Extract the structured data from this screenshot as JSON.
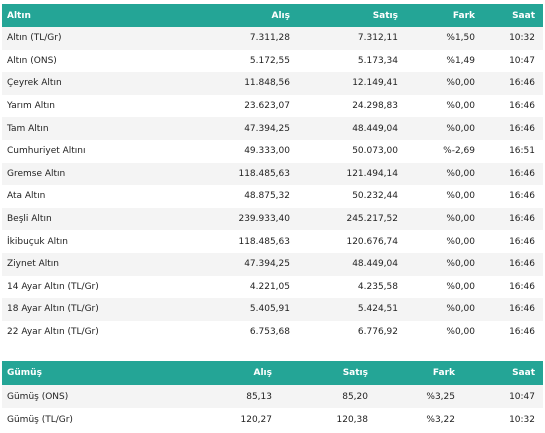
{
  "gold": {
    "headers": {
      "name": "Altın",
      "buy": "Alış",
      "sell": "Satış",
      "diff": "Fark",
      "time": "Saat"
    },
    "rows": [
      {
        "name": "Altın (TL/Gr)",
        "buy": "7.311,28",
        "sell": "7.312,11",
        "diff": "%1,50",
        "time": "10:32"
      },
      {
        "name": "Altın (ONS)",
        "buy": "5.172,55",
        "sell": "5.173,34",
        "diff": "%1,49",
        "time": "10:47"
      },
      {
        "name": "Çeyrek Altın",
        "buy": "11.848,56",
        "sell": "12.149,41",
        "diff": "%0,00",
        "time": "16:46"
      },
      {
        "name": "Yarım Altın",
        "buy": "23.623,07",
        "sell": "24.298,83",
        "diff": "%0,00",
        "time": "16:46"
      },
      {
        "name": "Tam Altın",
        "buy": "47.394,25",
        "sell": "48.449,04",
        "diff": "%0,00",
        "time": "16:46"
      },
      {
        "name": "Cumhuriyet Altını",
        "buy": "49.333,00",
        "sell": "50.073,00",
        "diff": "%-2,69",
        "time": "16:51"
      },
      {
        "name": "Gremse Altın",
        "buy": "118.485,63",
        "sell": "121.494,14",
        "diff": "%0,00",
        "time": "16:46"
      },
      {
        "name": "Ata Altın",
        "buy": "48.875,32",
        "sell": "50.232,44",
        "diff": "%0,00",
        "time": "16:46"
      },
      {
        "name": "Beşli Altın",
        "buy": "239.933,40",
        "sell": "245.217,52",
        "diff": "%0,00",
        "time": "16:46"
      },
      {
        "name": "İkibuçuk Altın",
        "buy": "118.485,63",
        "sell": "120.676,74",
        "diff": "%0,00",
        "time": "16:46"
      },
      {
        "name": "Ziynet Altın",
        "buy": "47.394,25",
        "sell": "48.449,04",
        "diff": "%0,00",
        "time": "16:46"
      },
      {
        "name": "14 Ayar Altın (TL/Gr)",
        "buy": "4.221,05",
        "sell": "4.235,58",
        "diff": "%0,00",
        "time": "16:46"
      },
      {
        "name": "18 Ayar Altın (TL/Gr)",
        "buy": "5.405,91",
        "sell": "5.424,51",
        "diff": "%0,00",
        "time": "16:46"
      },
      {
        "name": "22 Ayar Altın (TL/Gr)",
        "buy": "6.753,68",
        "sell": "6.776,92",
        "diff": "%0,00",
        "time": "16:46"
      }
    ]
  },
  "silver": {
    "headers": {
      "name": "Gümüş",
      "buy": "Alış",
      "sell": "Satış",
      "diff": "Fark",
      "time": "Saat"
    },
    "rows": [
      {
        "name": "Gümüş (ONS)",
        "buy": "85,13",
        "sell": "85,20",
        "diff": "%3,25",
        "time": "10:47"
      },
      {
        "name": "Gümüş (TL/Gr)",
        "buy": "120,27",
        "sell": "120,38",
        "diff": "%3,22",
        "time": "10:32"
      }
    ]
  },
  "colors": {
    "header_bg": "#24a596",
    "row_alt": "#f4f4f4"
  }
}
